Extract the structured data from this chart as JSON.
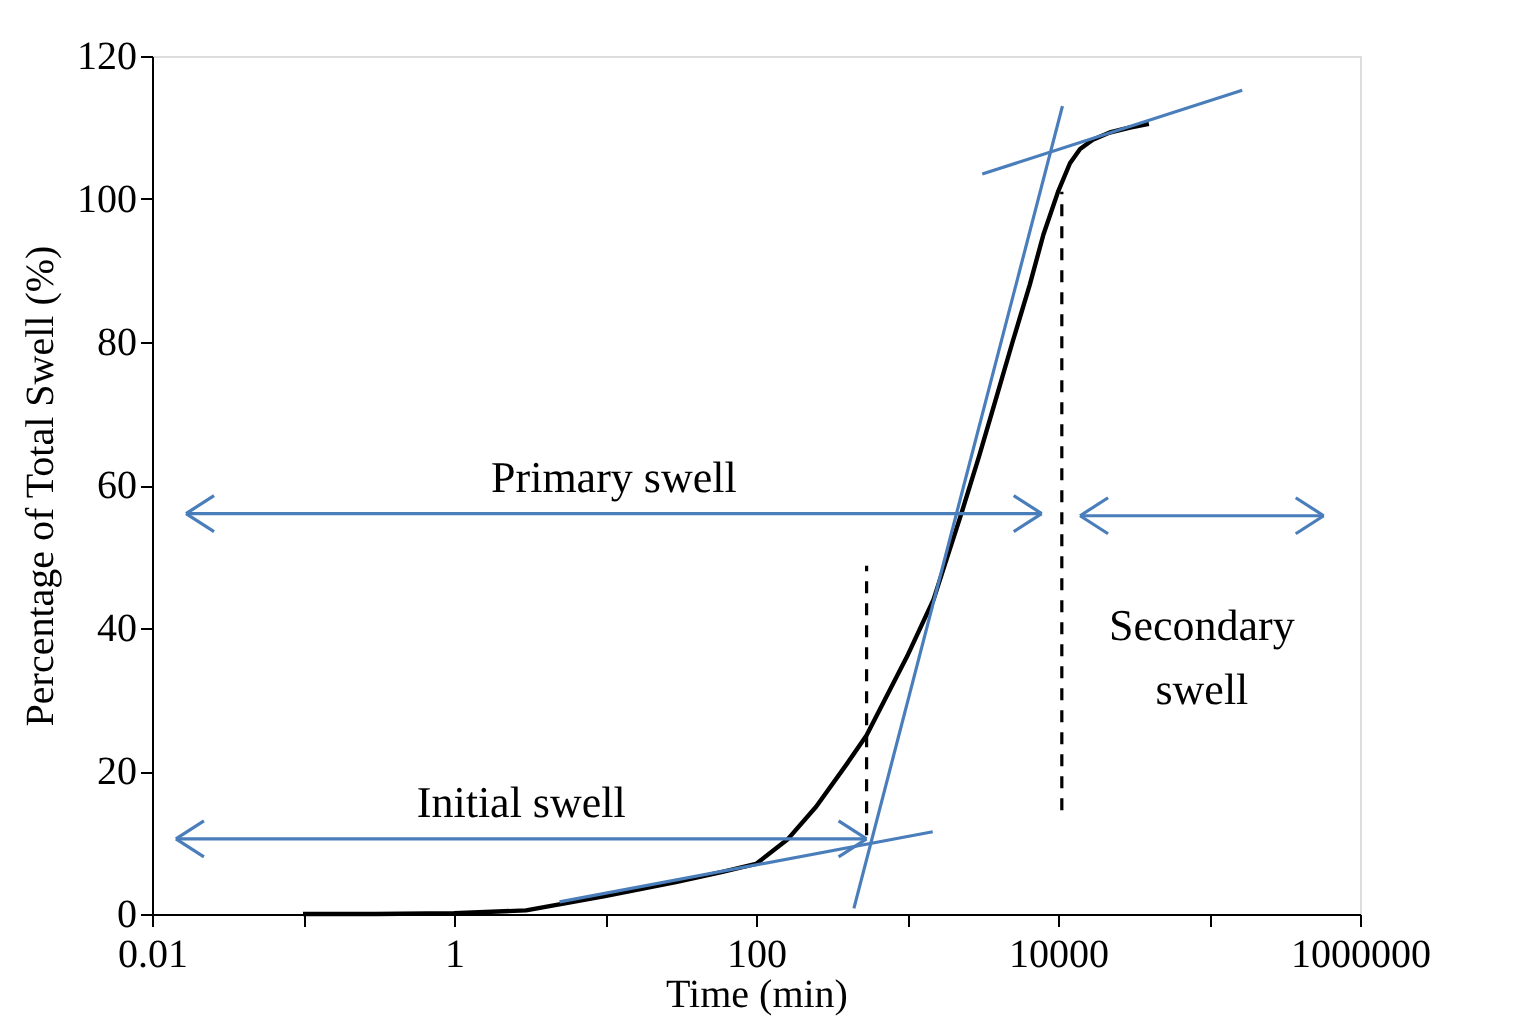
{
  "chart_data": {
    "type": "line",
    "xlabel": "Time (min)",
    "ylabel": "Percentage of Total Swell (%)",
    "log": "x",
    "xlim": [
      0.01,
      1000000
    ],
    "xticks": [
      0.01,
      {
        "value": 0.1,
        "label": null
      },
      1,
      {
        "value": 10,
        "label": null
      },
      100,
      {
        "value": 1000,
        "label": null
      },
      10000,
      {
        "value": 100000,
        "label": null
      },
      1000000
    ],
    "ylim": [
      0,
      120
    ],
    "yticks": [
      0,
      20,
      40,
      60,
      80,
      100,
      120
    ],
    "grid": false,
    "marker": "none",
    "series": [
      {
        "color": "#000000",
        "x": [
          0.1,
          0.3,
          1,
          3,
          10,
          30,
          60,
          100,
          163,
          250,
          400,
          540,
          1000,
          1500,
          2290,
          3000,
          4000,
          5000,
          6500,
          8000,
          10000,
          12000,
          14000,
          17000,
          22000,
          30000,
          40000
        ],
        "values": [
          0,
          0,
          0.1,
          0.5,
          2.5,
          4.5,
          5.9,
          7,
          10.5,
          15,
          21,
          25,
          36,
          44,
          56,
          64,
          73,
          80,
          88,
          95,
          101,
          105,
          107,
          108.3,
          109.3,
          110,
          110.5
        ]
      },
      {
        "color": "#4a7ebb",
        "x": [
          5,
          1480
        ],
        "values": [
          1.7,
          11.5
        ]
      },
      {
        "color": "#4a7ebb",
        "x": [
          445,
          10700
        ],
        "values": [
          0.8,
          113
        ]
      },
      {
        "color": "#4a7ebb",
        "x": [
          3150,
          166000
        ],
        "values": [
          103.5,
          115.2
        ]
      },
      {
        "color": "#000000",
        "line_style": "dashed",
        "x": [
          540,
          540
        ],
        "values": [
          11,
          48.7
        ]
      },
      {
        "color": "#000000",
        "line_style": "dashed",
        "x": [
          10600,
          10600
        ],
        "values": [
          14.5,
          101
        ]
      },
      {
        "color": "#4a7ebb",
        "x": [
          0.0144,
          540
        ],
        "values": [
          10.5,
          10.5
        ]
      },
      {
        "color": "#4a7ebb",
        "x": [
          0.0168,
          7800
        ],
        "values": [
          56,
          56
        ]
      },
      {
        "color": "#4a7ebb",
        "x": [
          14000,
          575000
        ],
        "values": [
          55.7,
          55.7
        ]
      }
    ],
    "annotations": [
      "Initial swell",
      "Primary swell",
      "Secondary\nswell"
    ]
  }
}
